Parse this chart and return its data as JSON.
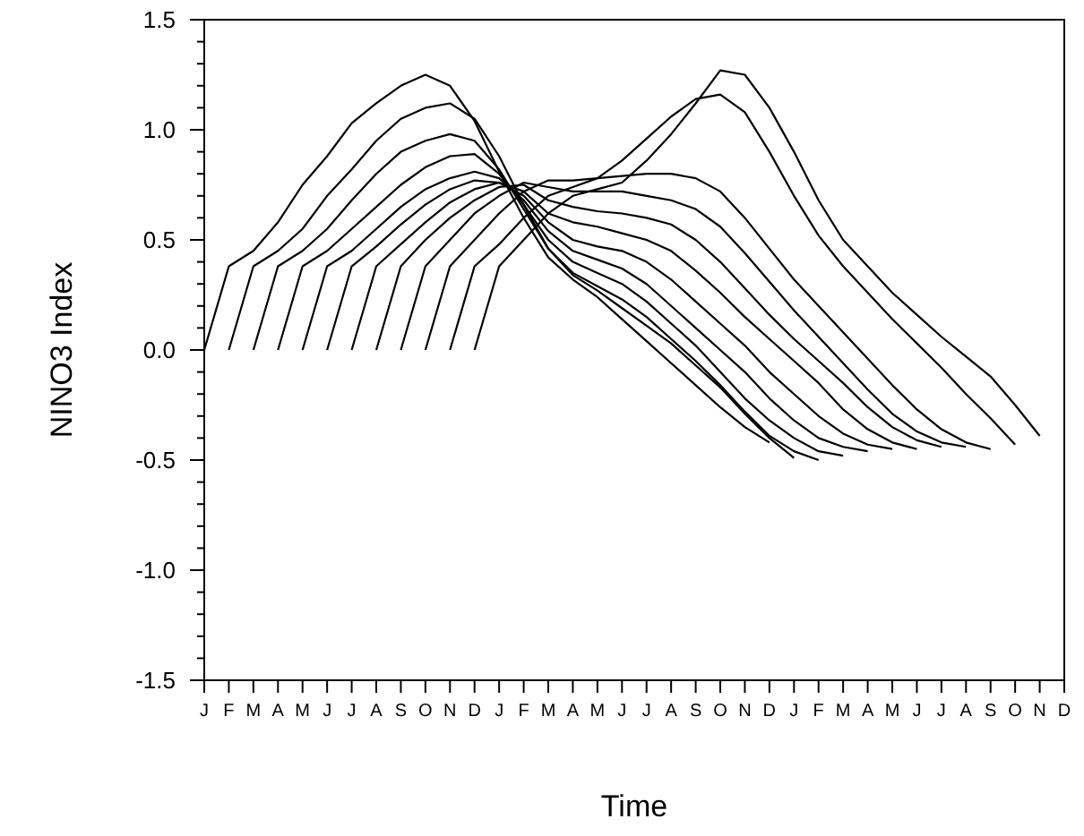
{
  "chart_data": {
    "type": "line",
    "xlabel": "Time",
    "ylabel": "NINO3 Index",
    "categories": [
      "J",
      "F",
      "M",
      "A",
      "M",
      "J",
      "J",
      "A",
      "S",
      "O",
      "N",
      "D",
      "J",
      "F",
      "M",
      "A",
      "M",
      "J",
      "J",
      "A",
      "S",
      "O",
      "N",
      "D",
      "J",
      "F",
      "M",
      "A",
      "M",
      "J",
      "J",
      "A",
      "S",
      "O",
      "N",
      "D"
    ],
    "ylim": [
      -1.5,
      1.5
    ],
    "yticks": [
      {
        "value": -1.5,
        "label": "-1.5"
      },
      {
        "value": -1.4,
        "label": null
      },
      {
        "value": -1.3,
        "label": null
      },
      {
        "value": -1.2,
        "label": null
      },
      {
        "value": -1.1,
        "label": null
      },
      {
        "value": -1.0,
        "label": "-1.0"
      },
      {
        "value": -0.9,
        "label": null
      },
      {
        "value": -0.8,
        "label": null
      },
      {
        "value": -0.7,
        "label": null
      },
      {
        "value": -0.6,
        "label": null
      },
      {
        "value": -0.5,
        "label": "-0.5"
      },
      {
        "value": -0.4,
        "label": null
      },
      {
        "value": -0.3,
        "label": null
      },
      {
        "value": -0.2,
        "label": null
      },
      {
        "value": -0.1,
        "label": null
      },
      {
        "value": 0,
        "label": "0.0"
      },
      {
        "value": 0.1,
        "label": null
      },
      {
        "value": 0.2,
        "label": null
      },
      {
        "value": 0.3,
        "label": null
      },
      {
        "value": 0.4,
        "label": null
      },
      {
        "value": 0.5,
        "label": "0.5"
      },
      {
        "value": 0.6,
        "label": null
      },
      {
        "value": 0.7,
        "label": null
      },
      {
        "value": 0.8,
        "label": null
      },
      {
        "value": 0.9,
        "label": null
      },
      {
        "value": 1.0,
        "label": "1.0"
      },
      {
        "value": 1.1,
        "label": null
      },
      {
        "value": 1.2,
        "label": null
      },
      {
        "value": 1.3,
        "label": null
      },
      {
        "value": 1.4,
        "label": null
      },
      {
        "value": 1.5,
        "label": "1.5"
      }
    ],
    "grid": false,
    "marker": "none",
    "line_style": "solid",
    "series": [
      {
        "color": "#000000",
        "values": [
          0,
          0.38,
          0.45,
          0.58,
          0.75,
          0.88,
          1.03,
          1.12,
          1.2,
          1.25,
          1.2,
          1.04,
          0.81,
          0.6,
          0.42,
          0.32,
          0.24,
          0.14,
          0.04,
          -0.06,
          -0.16,
          -0.26,
          -0.35,
          -0.42,
          null,
          null,
          null,
          null,
          null,
          null,
          null,
          null,
          null,
          null,
          null,
          null
        ]
      },
      {
        "color": "#000000",
        "values": [
          null,
          0,
          0.38,
          0.45,
          0.55,
          0.7,
          0.82,
          0.95,
          1.05,
          1.1,
          1.12,
          1.05,
          0.88,
          0.66,
          0.46,
          0.34,
          0.27,
          0.19,
          0.11,
          0.03,
          -0.07,
          -0.17,
          -0.29,
          -0.4,
          -0.49,
          null,
          null,
          null,
          null,
          null,
          null,
          null,
          null,
          null,
          null,
          null
        ]
      },
      {
        "color": "#000000",
        "values": [
          null,
          null,
          0,
          0.38,
          0.45,
          0.55,
          0.68,
          0.8,
          0.9,
          0.95,
          0.98,
          0.95,
          0.82,
          0.64,
          0.46,
          0.35,
          0.29,
          0.23,
          0.15,
          0.05,
          -0.05,
          -0.16,
          -0.28,
          -0.39,
          -0.46,
          -0.5,
          null,
          null,
          null,
          null,
          null,
          null,
          null,
          null,
          null,
          null
        ]
      },
      {
        "color": "#000000",
        "values": [
          null,
          null,
          null,
          0,
          0.38,
          0.45,
          0.55,
          0.65,
          0.75,
          0.83,
          0.88,
          0.89,
          0.8,
          0.66,
          0.5,
          0.4,
          0.35,
          0.3,
          0.22,
          0.12,
          0.02,
          -0.1,
          -0.22,
          -0.32,
          -0.4,
          -0.46,
          -0.48,
          null,
          null,
          null,
          null,
          null,
          null,
          null,
          null,
          null
        ]
      },
      {
        "color": "#000000",
        "values": [
          null,
          null,
          null,
          null,
          0,
          0.38,
          0.45,
          0.55,
          0.65,
          0.73,
          0.78,
          0.81,
          0.78,
          0.68,
          0.54,
          0.45,
          0.41,
          0.37,
          0.3,
          0.2,
          0.1,
          0,
          -0.1,
          -0.22,
          -0.32,
          -0.4,
          -0.44,
          -0.46,
          null,
          null,
          null,
          null,
          null,
          null,
          null,
          null
        ]
      },
      {
        "color": "#000000",
        "values": [
          null,
          null,
          null,
          null,
          null,
          0,
          0.38,
          0.47,
          0.57,
          0.66,
          0.73,
          0.77,
          0.76,
          0.7,
          0.58,
          0.5,
          0.47,
          0.45,
          0.4,
          0.32,
          0.22,
          0.12,
          0.02,
          -0.1,
          -0.2,
          -0.3,
          -0.38,
          -0.43,
          -0.45,
          null,
          null,
          null,
          null,
          null,
          null,
          null
        ]
      },
      {
        "color": "#000000",
        "values": [
          null,
          null,
          null,
          null,
          null,
          null,
          0,
          0.38,
          0.48,
          0.58,
          0.67,
          0.73,
          0.76,
          0.72,
          0.62,
          0.58,
          0.56,
          0.53,
          0.5,
          0.45,
          0.36,
          0.26,
          0.15,
          0.05,
          -0.05,
          -0.15,
          -0.27,
          -0.36,
          -0.42,
          -0.45,
          null,
          null,
          null,
          null,
          null,
          null
        ]
      },
      {
        "color": "#000000",
        "values": [
          null,
          null,
          null,
          null,
          null,
          null,
          null,
          0,
          0.38,
          0.5,
          0.6,
          0.68,
          0.74,
          0.75,
          0.68,
          0.65,
          0.63,
          0.62,
          0.6,
          0.57,
          0.5,
          0.4,
          0.28,
          0.16,
          0.05,
          -0.05,
          -0.15,
          -0.26,
          -0.35,
          -0.41,
          -0.44,
          null,
          null,
          null,
          null,
          null
        ]
      },
      {
        "color": "#000000",
        "values": [
          null,
          null,
          null,
          null,
          null,
          null,
          null,
          null,
          0,
          0.38,
          0.5,
          0.62,
          0.7,
          0.76,
          0.74,
          0.72,
          0.72,
          0.72,
          0.7,
          0.68,
          0.64,
          0.56,
          0.44,
          0.31,
          0.18,
          0.06,
          -0.06,
          -0.18,
          -0.29,
          -0.37,
          -0.42,
          -0.44,
          null,
          null,
          null,
          null
        ]
      },
      {
        "color": "#000000",
        "values": [
          null,
          null,
          null,
          null,
          null,
          null,
          null,
          null,
          null,
          0,
          0.38,
          0.5,
          0.62,
          0.72,
          0.77,
          0.77,
          0.78,
          0.79,
          0.8,
          0.8,
          0.78,
          0.72,
          0.6,
          0.46,
          0.32,
          0.2,
          0.08,
          -0.04,
          -0.16,
          -0.27,
          -0.36,
          -0.42,
          -0.45,
          null,
          null,
          null
        ]
      },
      {
        "color": "#000000",
        "values": [
          null,
          null,
          null,
          null,
          null,
          null,
          null,
          null,
          null,
          null,
          0,
          0.38,
          0.48,
          0.6,
          0.7,
          0.74,
          0.78,
          0.86,
          0.96,
          1.06,
          1.14,
          1.16,
          1.08,
          0.9,
          0.7,
          0.52,
          0.38,
          0.26,
          0.14,
          0.03,
          -0.08,
          -0.2,
          -0.31,
          -0.43,
          null,
          null
        ]
      },
      {
        "color": "#000000",
        "values": [
          null,
          null,
          null,
          null,
          null,
          null,
          null,
          null,
          null,
          null,
          null,
          0,
          0.38,
          0.5,
          0.62,
          0.7,
          0.73,
          0.76,
          0.86,
          0.98,
          1.12,
          1.27,
          1.25,
          1.1,
          0.9,
          0.68,
          0.5,
          0.38,
          0.26,
          0.16,
          0.06,
          -0.03,
          -0.12,
          -0.25,
          -0.39,
          null
        ]
      }
    ]
  }
}
